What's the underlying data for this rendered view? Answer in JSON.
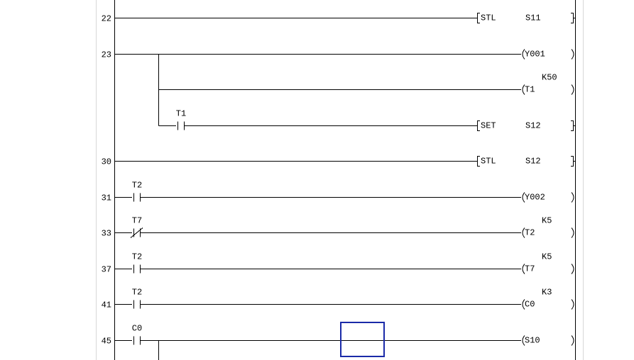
{
  "editor": {
    "cursor_color": "#1a2aa8",
    "line_color": "#000000",
    "rows": [
      {
        "step": "22",
        "contacts": [],
        "output": {
          "kind": "instruction",
          "op": "STL",
          "arg": "S11"
        }
      },
      {
        "step": "23",
        "contacts": [],
        "output": {
          "kind": "coil",
          "device": "Y001"
        }
      },
      {
        "step": "",
        "branch": true,
        "contacts": [],
        "output": {
          "kind": "coil",
          "device": "T1",
          "setpoint": "K50"
        }
      },
      {
        "step": "",
        "branch": true,
        "contacts": [
          {
            "device": "T1",
            "type": "NO"
          }
        ],
        "output": {
          "kind": "instruction",
          "op": "SET",
          "arg": "S12"
        }
      },
      {
        "step": "30",
        "contacts": [],
        "output": {
          "kind": "instruction",
          "op": "STL",
          "arg": "S12"
        }
      },
      {
        "step": "31",
        "contacts": [
          {
            "device": "T2",
            "type": "NO"
          }
        ],
        "output": {
          "kind": "coil",
          "device": "Y002"
        }
      },
      {
        "step": "33",
        "contacts": [
          {
            "device": "T7",
            "type": "NC"
          }
        ],
        "output": {
          "kind": "coil",
          "device": "T2",
          "setpoint": "K5"
        }
      },
      {
        "step": "37",
        "contacts": [
          {
            "device": "T2",
            "type": "NO"
          }
        ],
        "output": {
          "kind": "coil",
          "device": "T7",
          "setpoint": "K5"
        }
      },
      {
        "step": "41",
        "contacts": [
          {
            "device": "T2",
            "type": "NO"
          }
        ],
        "output": {
          "kind": "coil",
          "device": "C0",
          "setpoint": "K3"
        }
      },
      {
        "step": "45",
        "contacts": [
          {
            "device": "C0",
            "type": "NO"
          }
        ],
        "branch_down": true,
        "output": {
          "kind": "coil",
          "device": "S10"
        }
      }
    ]
  }
}
